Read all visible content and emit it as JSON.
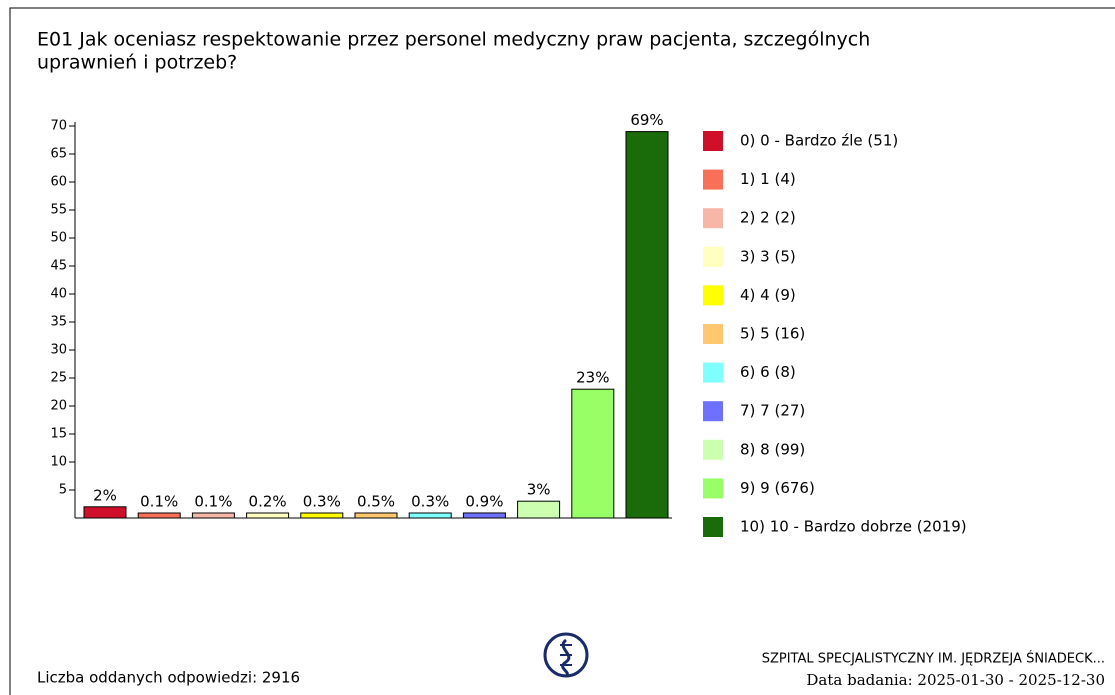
{
  "chart_data": {
    "type": "bar",
    "title": [
      "E01 Jak oceniasz respektowanie przez personel medyczny praw pacjenta, szczególnych",
      "uprawnień i potrzeb?"
    ],
    "categories": [
      "0) 0 - Bardzo źle (51)",
      "1) 1 (4)",
      "2) 2 (2)",
      "3) 3 (5)",
      "4) 4 (9)",
      "5) 5 (16)",
      "6) 6 (8)",
      "7) 7 (27)",
      "8) 8 (99)",
      "9) 9 (676)",
      "10) 10 - Bardzo dobrze (2019)"
    ],
    "values": [
      2,
      0.1,
      0.1,
      0.2,
      0.3,
      0.5,
      0.3,
      0.9,
      3,
      23,
      69
    ],
    "value_labels": [
      "2%",
      "0.1%",
      "0.1%",
      "0.2%",
      "0.3%",
      "0.5%",
      "0.3%",
      "0.9%",
      "3%",
      "23%",
      "69%"
    ],
    "colors": [
      "#d0102a",
      "#f97058",
      "#f7b7a8",
      "#ffffc0",
      "#ffff00",
      "#ffc870",
      "#80ffff",
      "#7070ff",
      "#ccffb0",
      "#99ff66",
      "#1a6b0a"
    ],
    "ylim": [
      0,
      70
    ],
    "yticks": [
      5,
      10,
      15,
      20,
      25,
      30,
      35,
      40,
      45,
      50,
      55,
      60,
      65,
      70
    ],
    "legend": "right"
  },
  "footer": {
    "responses": "Liczba oddanych odpowiedzi: 2916",
    "institution": "SZPITAL SPECJALISTYCZNY IM. JĘDRZEJA ŚNIADECK...",
    "date": "Data badania: 2025-01-30 - 2025-12-30"
  }
}
